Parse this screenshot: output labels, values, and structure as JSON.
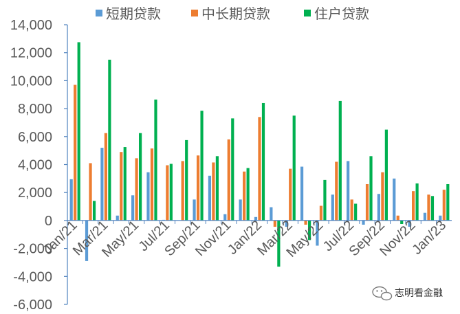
{
  "chart_data": {
    "type": "bar",
    "title": "",
    "xlabel": "",
    "ylabel": "",
    "ylim": [
      -6000,
      14000
    ],
    "yticks": [
      -6000,
      -4000,
      -2000,
      0,
      2000,
      4000,
      6000,
      8000,
      10000,
      12000,
      14000
    ],
    "ytick_labels": [
      "-6,000",
      "-4,000",
      "-2,000",
      "0",
      "2,000",
      "4,000",
      "6,000",
      "8,000",
      "10,000",
      "12,000",
      "14,000"
    ],
    "legend_position": "top",
    "grid": false,
    "categories": [
      "Jan/21",
      "Feb/21",
      "Mar/21",
      "Apr/21",
      "May/21",
      "Jun/21",
      "Jul/21",
      "Aug/21",
      "Sep/21",
      "Oct/21",
      "Nov/21",
      "Dec/21",
      "Jan/22",
      "Feb/22",
      "Mar/22",
      "Apr/22",
      "May/22",
      "Jun/22",
      "Jul/22",
      "Aug/22",
      "Sep/22",
      "Oct/22",
      "Nov/22",
      "Dec/22",
      "Jan/23"
    ],
    "xtick_labels": [
      "Jan/21",
      "Mar/21",
      "May/21",
      "Jul/21",
      "Sep/21",
      "Nov/21",
      "Jan/22",
      "Mar/22",
      "May/22",
      "Jul/22",
      "Sep/22",
      "Nov/22",
      "Jan/23"
    ],
    "series": [
      {
        "name": "短期贷款",
        "color": "#5B9BD5",
        "values": [
          2950,
          -2900,
          5200,
          350,
          1800,
          3450,
          50,
          0,
          1500,
          3200,
          450,
          1500,
          250,
          950,
          -450,
          3850,
          -1800,
          1850,
          4250,
          -300,
          1900,
          3000,
          -450,
          550,
          350
        ]
      },
      {
        "name": "中长期贷款",
        "color": "#ED7D31",
        "values": [
          9700,
          4100,
          6250,
          4900,
          4450,
          5150,
          3950,
          4250,
          4650,
          4150,
          5800,
          3500,
          7400,
          -450,
          3700,
          -300,
          1050,
          4200,
          1500,
          2600,
          3450,
          350,
          2100,
          1850,
          2200
        ]
      },
      {
        "name": "住户贷款",
        "color": "#00B050",
        "values": [
          12750,
          1400,
          11500,
          5250,
          6250,
          8650,
          4050,
          5750,
          7850,
          4600,
          7300,
          3750,
          8400,
          -3300,
          7500,
          -1400,
          2900,
          8550,
          1200,
          4600,
          6500,
          -250,
          2650,
          1750,
          2600
        ]
      }
    ]
  },
  "watermark": {
    "text": "志明看金融",
    "icon": "wechat-icon"
  }
}
